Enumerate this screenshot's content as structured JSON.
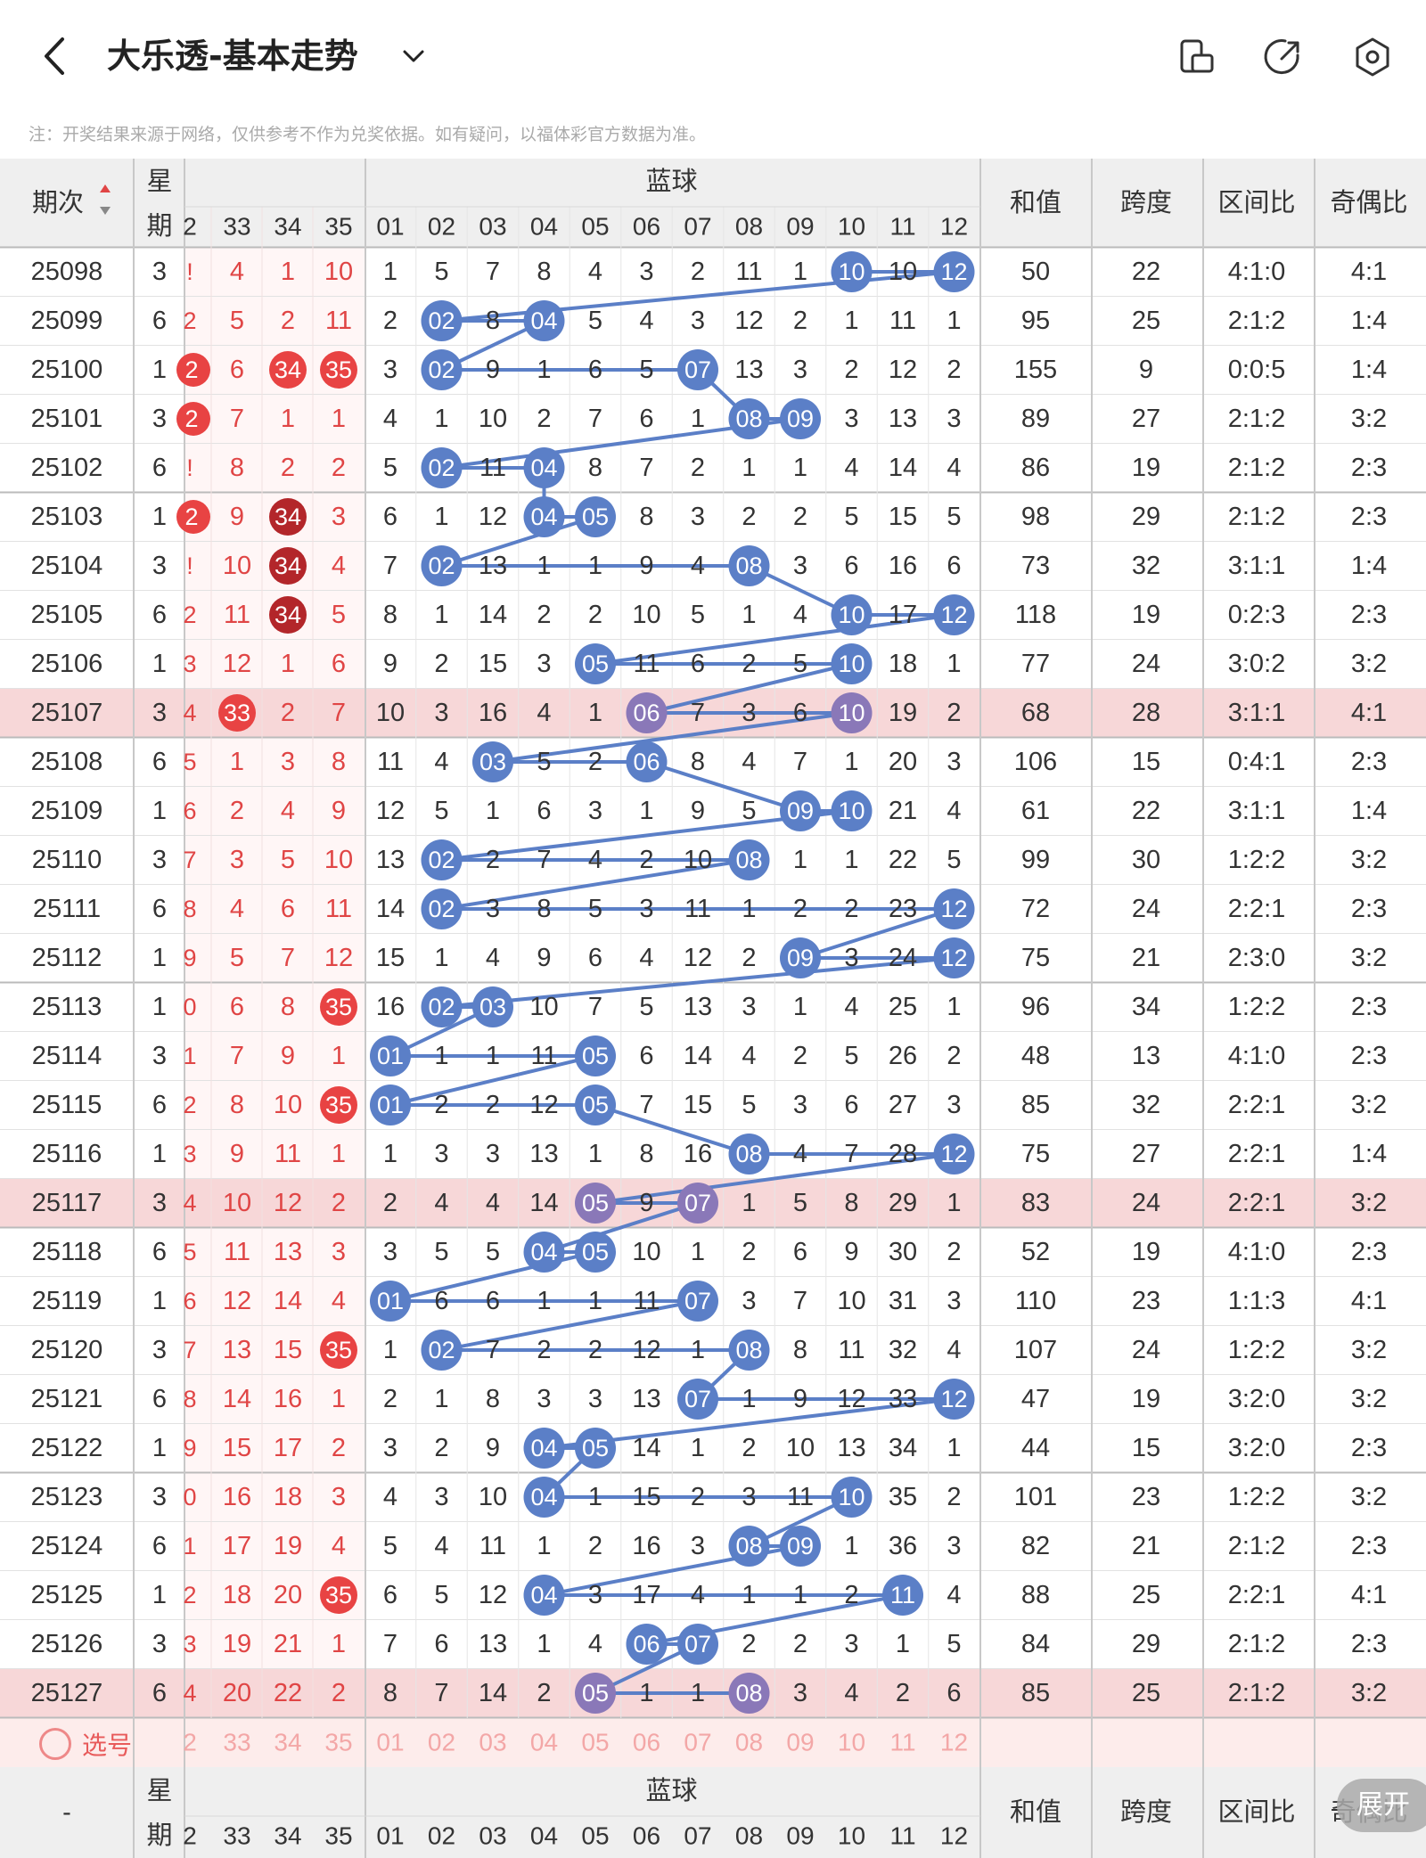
{
  "header": {
    "title": "大乐透-基本走势",
    "note": "注：开奖结果来源于网络，仅供参考不作为兑奖依据。如有疑问，以福体彩官方数据为准。"
  },
  "columns": {
    "issue": "期次",
    "weekday": "星期",
    "blue_group": "蓝球",
    "sum": "和值",
    "span": "跨度",
    "zone_ratio": "区间比",
    "odd_even_ratio": "奇偶比",
    "red_partial_first": "2",
    "red_visible": [
      "33",
      "34",
      "35"
    ],
    "blue": [
      "01",
      "02",
      "03",
      "04",
      "05",
      "06",
      "07",
      "08",
      "09",
      "10",
      "11",
      "12"
    ]
  },
  "footer": {
    "select_label": "选号",
    "dash": "-",
    "expand_label": "展开"
  },
  "colors": {
    "red_text": "#e04545",
    "red_ball": "#e84343",
    "dark_red_ball": "#b3262a",
    "blue_ball": "#5b7fc7",
    "purple_ball": "#8a78b8",
    "highlight_row": "#f7d7d8",
    "footer_pink": "#fdeceb",
    "header_bg": "#efefef"
  },
  "highlight_rows": [
    9,
    19,
    29
  ],
  "rows": [
    {
      "issue": "25098",
      "wd": "3",
      "rp": "!",
      "r": [
        "4",
        "1",
        "10"
      ],
      "redMark": [
        0,
        0,
        0
      ],
      "b": [
        "1",
        "5",
        "7",
        "8",
        "4",
        "3",
        "2",
        "11",
        "1",
        "10",
        "10",
        "12"
      ],
      "hits": [
        10,
        12
      ],
      "sum": "50",
      "span": "22",
      "zone": "4:1:0",
      "oe": "4:1"
    },
    {
      "issue": "25099",
      "wd": "6",
      "rp": "2",
      "r": [
        "5",
        "2",
        "11"
      ],
      "redMark": [
        0,
        0,
        0
      ],
      "b": [
        "2",
        "02",
        "8",
        "04",
        "5",
        "4",
        "3",
        "12",
        "2",
        "1",
        "11",
        "1"
      ],
      "hits": [
        2,
        4
      ],
      "sum": "95",
      "span": "25",
      "zone": "2:1:2",
      "oe": "1:4"
    },
    {
      "issue": "25100",
      "wd": "1",
      "rp": "2",
      "rpBall": true,
      "r": [
        "6",
        "34",
        "35"
      ],
      "redMark": [
        0,
        1,
        1
      ],
      "b": [
        "3",
        "02",
        "9",
        "1",
        "6",
        "5",
        "07",
        "13",
        "3",
        "2",
        "12",
        "2"
      ],
      "hits": [
        2,
        7
      ],
      "sum": "155",
      "span": "9",
      "zone": "0:0:5",
      "oe": "1:4"
    },
    {
      "issue": "25101",
      "wd": "3",
      "rp": "2",
      "rpBall": true,
      "r": [
        "7",
        "1",
        "1"
      ],
      "redMark": [
        0,
        0,
        0
      ],
      "b": [
        "4",
        "1",
        "10",
        "2",
        "7",
        "6",
        "1",
        "08",
        "09",
        "3",
        "13",
        "3"
      ],
      "hits": [
        8,
        9
      ],
      "sum": "89",
      "span": "27",
      "zone": "2:1:2",
      "oe": "3:2"
    },
    {
      "issue": "25102",
      "wd": "6",
      "rp": "!",
      "r": [
        "8",
        "2",
        "2"
      ],
      "redMark": [
        0,
        0,
        0
      ],
      "b": [
        "5",
        "02",
        "11",
        "04",
        "8",
        "7",
        "2",
        "1",
        "1",
        "4",
        "14",
        "4"
      ],
      "hits": [
        2,
        4
      ],
      "sum": "86",
      "span": "19",
      "zone": "2:1:2",
      "oe": "2:3"
    },
    {
      "issue": "25103",
      "wd": "1",
      "rp": "2",
      "rpBall": true,
      "r": [
        "9",
        "34",
        "3"
      ],
      "redMark": [
        0,
        2,
        0
      ],
      "b": [
        "6",
        "1",
        "12",
        "04",
        "05",
        "8",
        "3",
        "2",
        "2",
        "5",
        "15",
        "5"
      ],
      "hits": [
        4,
        5
      ],
      "sum": "98",
      "span": "29",
      "zone": "2:1:2",
      "oe": "2:3"
    },
    {
      "issue": "25104",
      "wd": "3",
      "rp": "!",
      "r": [
        "10",
        "34",
        "4"
      ],
      "redMark": [
        0,
        2,
        0
      ],
      "b": [
        "7",
        "02",
        "13",
        "1",
        "1",
        "9",
        "4",
        "08",
        "3",
        "6",
        "16",
        "6"
      ],
      "hits": [
        2,
        8
      ],
      "sum": "73",
      "span": "32",
      "zone": "3:1:1",
      "oe": "1:4"
    },
    {
      "issue": "25105",
      "wd": "6",
      "rp": "2",
      "r": [
        "11",
        "34",
        "5"
      ],
      "redMark": [
        0,
        2,
        0
      ],
      "b": [
        "8",
        "1",
        "14",
        "2",
        "2",
        "10",
        "5",
        "1",
        "4",
        "10",
        "17",
        "12"
      ],
      "hits": [
        10,
        12
      ],
      "sum": "118",
      "span": "19",
      "zone": "0:2:3",
      "oe": "2:3"
    },
    {
      "issue": "25106",
      "wd": "1",
      "rp": "3",
      "r": [
        "12",
        "1",
        "6"
      ],
      "redMark": [
        0,
        0,
        0
      ],
      "b": [
        "9",
        "2",
        "15",
        "3",
        "05",
        "11",
        "6",
        "2",
        "5",
        "10",
        "18",
        "1"
      ],
      "hits": [
        5,
        10
      ],
      "sum": "77",
      "span": "24",
      "zone": "3:0:2",
      "oe": "3:2"
    },
    {
      "issue": "25107",
      "wd": "3",
      "rp": "4",
      "r": [
        "33",
        "2",
        "7"
      ],
      "redMark": [
        1,
        0,
        0
      ],
      "b": [
        "10",
        "3",
        "16",
        "4",
        "1",
        "06",
        "7",
        "3",
        "6",
        "10",
        "19",
        "2"
      ],
      "hits": [
        6,
        10
      ],
      "sum": "68",
      "span": "28",
      "zone": "3:1:1",
      "oe": "4:1"
    },
    {
      "issue": "25108",
      "wd": "6",
      "rp": "5",
      "r": [
        "1",
        "3",
        "8"
      ],
      "redMark": [
        0,
        0,
        0
      ],
      "b": [
        "11",
        "4",
        "03",
        "5",
        "2",
        "06",
        "8",
        "4",
        "7",
        "1",
        "20",
        "3"
      ],
      "hits": [
        3,
        6
      ],
      "sum": "106",
      "span": "15",
      "zone": "0:4:1",
      "oe": "2:3"
    },
    {
      "issue": "25109",
      "wd": "1",
      "rp": "6",
      "r": [
        "2",
        "4",
        "9"
      ],
      "redMark": [
        0,
        0,
        0
      ],
      "b": [
        "12",
        "5",
        "1",
        "6",
        "3",
        "1",
        "9",
        "5",
        "09",
        "10",
        "21",
        "4"
      ],
      "hits": [
        9,
        10
      ],
      "sum": "61",
      "span": "22",
      "zone": "3:1:1",
      "oe": "1:4"
    },
    {
      "issue": "25110",
      "wd": "3",
      "rp": "7",
      "r": [
        "3",
        "5",
        "10"
      ],
      "redMark": [
        0,
        0,
        0
      ],
      "b": [
        "13",
        "02",
        "2",
        "7",
        "4",
        "2",
        "10",
        "08",
        "1",
        "1",
        "22",
        "5"
      ],
      "hits": [
        2,
        8
      ],
      "sum": "99",
      "span": "30",
      "zone": "1:2:2",
      "oe": "3:2"
    },
    {
      "issue": "25111",
      "wd": "6",
      "rp": "8",
      "r": [
        "4",
        "6",
        "11"
      ],
      "redMark": [
        0,
        0,
        0
      ],
      "b": [
        "14",
        "02",
        "3",
        "8",
        "5",
        "3",
        "11",
        "1",
        "2",
        "2",
        "23",
        "12"
      ],
      "hits": [
        2,
        12
      ],
      "sum": "72",
      "span": "24",
      "zone": "2:2:1",
      "oe": "2:3"
    },
    {
      "issue": "25112",
      "wd": "1",
      "rp": "9",
      "r": [
        "5",
        "7",
        "12"
      ],
      "redMark": [
        0,
        0,
        0
      ],
      "b": [
        "15",
        "1",
        "4",
        "9",
        "6",
        "4",
        "12",
        "2",
        "09",
        "3",
        "24",
        "12"
      ],
      "hits": [
        9,
        12
      ],
      "sum": "75",
      "span": "21",
      "zone": "2:3:0",
      "oe": "3:2"
    },
    {
      "issue": "25113",
      "wd": "1",
      "rp": "0",
      "r": [
        "6",
        "8",
        "35"
      ],
      "redMark": [
        0,
        0,
        1
      ],
      "b": [
        "16",
        "02",
        "03",
        "10",
        "7",
        "5",
        "13",
        "3",
        "1",
        "4",
        "25",
        "1"
      ],
      "hits": [
        2,
        3
      ],
      "sum": "96",
      "span": "34",
      "zone": "1:2:2",
      "oe": "2:3"
    },
    {
      "issue": "25114",
      "wd": "3",
      "rp": "1",
      "r": [
        "7",
        "9",
        "1"
      ],
      "redMark": [
        0,
        0,
        0
      ],
      "b": [
        "01",
        "1",
        "1",
        "11",
        "05",
        "6",
        "14",
        "4",
        "2",
        "5",
        "26",
        "2"
      ],
      "hits": [
        1,
        5
      ],
      "sum": "48",
      "span": "13",
      "zone": "4:1:0",
      "oe": "2:3"
    },
    {
      "issue": "25115",
      "wd": "6",
      "rp": "2",
      "r": [
        "8",
        "10",
        "35"
      ],
      "redMark": [
        0,
        0,
        1
      ],
      "b": [
        "01",
        "2",
        "2",
        "12",
        "05",
        "7",
        "15",
        "5",
        "3",
        "6",
        "27",
        "3"
      ],
      "hits": [
        1,
        5
      ],
      "sum": "85",
      "span": "32",
      "zone": "2:2:1",
      "oe": "3:2"
    },
    {
      "issue": "25116",
      "wd": "1",
      "rp": "3",
      "r": [
        "9",
        "11",
        "1"
      ],
      "redMark": [
        0,
        0,
        0
      ],
      "b": [
        "1",
        "3",
        "3",
        "13",
        "1",
        "8",
        "16",
        "08",
        "4",
        "7",
        "28",
        "12"
      ],
      "hits": [
        8,
        12
      ],
      "sum": "75",
      "span": "27",
      "zone": "2:2:1",
      "oe": "1:4"
    },
    {
      "issue": "25117",
      "wd": "3",
      "rp": "4",
      "r": [
        "10",
        "12",
        "2"
      ],
      "redMark": [
        0,
        0,
        0
      ],
      "b": [
        "2",
        "4",
        "4",
        "14",
        "05",
        "9",
        "07",
        "1",
        "5",
        "8",
        "29",
        "1"
      ],
      "hits": [
        5,
        7
      ],
      "sum": "83",
      "span": "24",
      "zone": "2:2:1",
      "oe": "3:2"
    },
    {
      "issue": "25118",
      "wd": "6",
      "rp": "5",
      "r": [
        "11",
        "13",
        "3"
      ],
      "redMark": [
        0,
        0,
        0
      ],
      "b": [
        "3",
        "5",
        "5",
        "04",
        "05",
        "10",
        "1",
        "2",
        "6",
        "9",
        "30",
        "2"
      ],
      "hits": [
        4,
        5
      ],
      "sum": "52",
      "span": "19",
      "zone": "4:1:0",
      "oe": "2:3"
    },
    {
      "issue": "25119",
      "wd": "1",
      "rp": "6",
      "r": [
        "12",
        "14",
        "4"
      ],
      "redMark": [
        0,
        0,
        0
      ],
      "b": [
        "01",
        "6",
        "6",
        "1",
        "1",
        "11",
        "07",
        "3",
        "7",
        "10",
        "31",
        "3"
      ],
      "hits": [
        1,
        7
      ],
      "sum": "110",
      "span": "23",
      "zone": "1:1:3",
      "oe": "4:1"
    },
    {
      "issue": "25120",
      "wd": "3",
      "rp": "7",
      "r": [
        "13",
        "15",
        "35"
      ],
      "redMark": [
        0,
        0,
        1
      ],
      "b": [
        "1",
        "02",
        "7",
        "2",
        "2",
        "12",
        "1",
        "08",
        "8",
        "11",
        "32",
        "4"
      ],
      "hits": [
        2,
        8
      ],
      "sum": "107",
      "span": "24",
      "zone": "1:2:2",
      "oe": "3:2"
    },
    {
      "issue": "25121",
      "wd": "6",
      "rp": "8",
      "r": [
        "14",
        "16",
        "1"
      ],
      "redMark": [
        0,
        0,
        0
      ],
      "b": [
        "2",
        "1",
        "8",
        "3",
        "3",
        "13",
        "07",
        "1",
        "9",
        "12",
        "33",
        "12"
      ],
      "hits": [
        7,
        12
      ],
      "sum": "47",
      "span": "19",
      "zone": "3:2:0",
      "oe": "3:2"
    },
    {
      "issue": "25122",
      "wd": "1",
      "rp": "9",
      "r": [
        "15",
        "17",
        "2"
      ],
      "redMark": [
        0,
        0,
        0
      ],
      "b": [
        "3",
        "2",
        "9",
        "04",
        "05",
        "14",
        "1",
        "2",
        "10",
        "13",
        "34",
        "1"
      ],
      "hits": [
        4,
        5
      ],
      "sum": "44",
      "span": "15",
      "zone": "3:2:0",
      "oe": "2:3"
    },
    {
      "issue": "25123",
      "wd": "3",
      "rp": "0",
      "r": [
        "16",
        "18",
        "3"
      ],
      "redMark": [
        0,
        0,
        0
      ],
      "b": [
        "4",
        "3",
        "10",
        "04",
        "1",
        "15",
        "2",
        "3",
        "11",
        "10",
        "35",
        "2"
      ],
      "hits": [
        4,
        10
      ],
      "sum": "101",
      "span": "23",
      "zone": "1:2:2",
      "oe": "3:2"
    },
    {
      "issue": "25124",
      "wd": "6",
      "rp": "1",
      "r": [
        "17",
        "19",
        "4"
      ],
      "redMark": [
        0,
        0,
        0
      ],
      "b": [
        "5",
        "4",
        "11",
        "1",
        "2",
        "16",
        "3",
        "08",
        "09",
        "1",
        "36",
        "3"
      ],
      "hits": [
        8,
        9
      ],
      "sum": "82",
      "span": "21",
      "zone": "2:1:2",
      "oe": "2:3"
    },
    {
      "issue": "25125",
      "wd": "1",
      "rp": "2",
      "r": [
        "18",
        "20",
        "35"
      ],
      "redMark": [
        0,
        0,
        1
      ],
      "b": [
        "6",
        "5",
        "12",
        "04",
        "3",
        "17",
        "4",
        "1",
        "1",
        "2",
        "11",
        "4"
      ],
      "hits": [
        4,
        11
      ],
      "sum": "88",
      "span": "25",
      "zone": "2:2:1",
      "oe": "4:1"
    },
    {
      "issue": "25126",
      "wd": "3",
      "rp": "3",
      "r": [
        "19",
        "21",
        "1"
      ],
      "redMark": [
        0,
        0,
        0
      ],
      "b": [
        "7",
        "6",
        "13",
        "1",
        "4",
        "06",
        "07",
        "2",
        "2",
        "3",
        "1",
        "5"
      ],
      "hits": [
        6,
        7
      ],
      "sum": "84",
      "span": "29",
      "zone": "2:1:2",
      "oe": "2:3"
    },
    {
      "issue": "25127",
      "wd": "6",
      "rp": "4",
      "r": [
        "20",
        "22",
        "2"
      ],
      "redMark": [
        0,
        0,
        0
      ],
      "b": [
        "8",
        "7",
        "14",
        "2",
        "05",
        "1",
        "1",
        "08",
        "3",
        "4",
        "2",
        "6"
      ],
      "hits": [
        5,
        8
      ],
      "sum": "85",
      "span": "25",
      "zone": "2:1:2",
      "oe": "3:2"
    }
  ]
}
